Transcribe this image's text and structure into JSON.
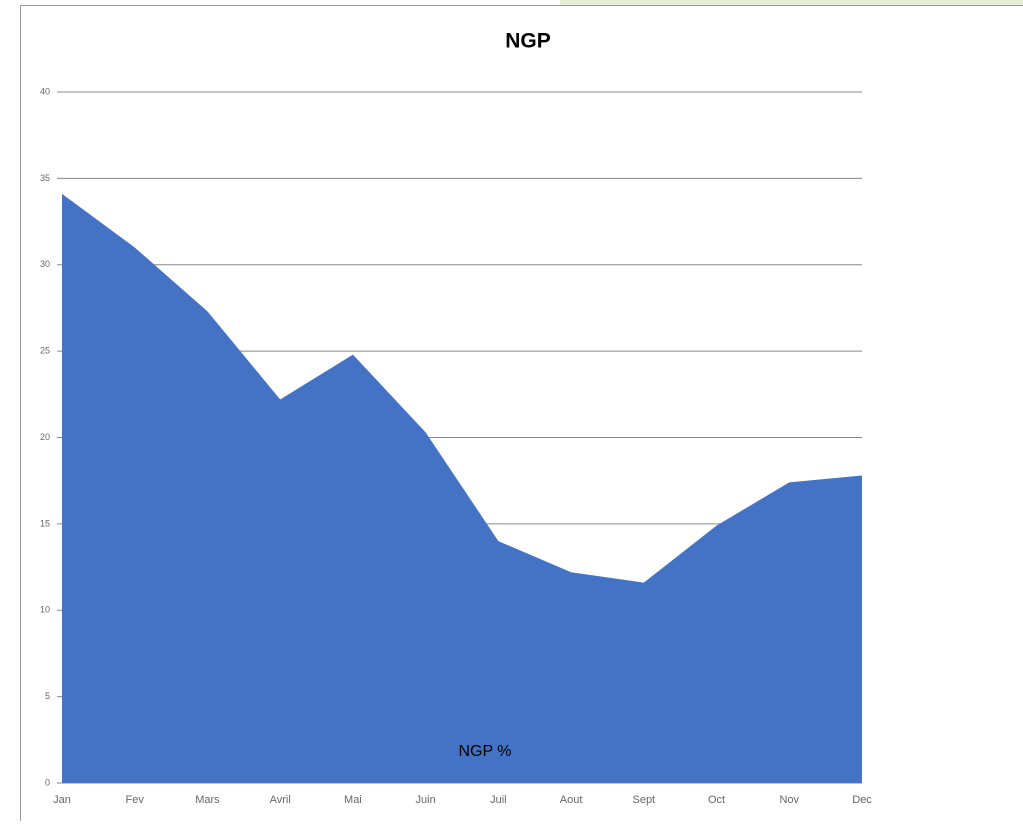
{
  "chart_data": {
    "type": "area",
    "title": "NGP",
    "categories": [
      "Jan",
      "Fev",
      "Mars",
      "Avril",
      "Mai",
      "Juin",
      "Juil",
      "Aout",
      "Sept",
      "Oct",
      "Nov",
      "Dec"
    ],
    "series": [
      {
        "name": "NGP %",
        "color": "#4472c4",
        "values": [
          34.1,
          31.0,
          27.3,
          22.2,
          24.8,
          20.3,
          14.0,
          12.2,
          11.6,
          14.9,
          17.4,
          17.8
        ]
      }
    ],
    "ylim": [
      0,
      40
    ],
    "yticks": [
      0,
      5,
      10,
      15,
      20,
      25,
      30,
      35,
      40
    ],
    "grid": true
  }
}
